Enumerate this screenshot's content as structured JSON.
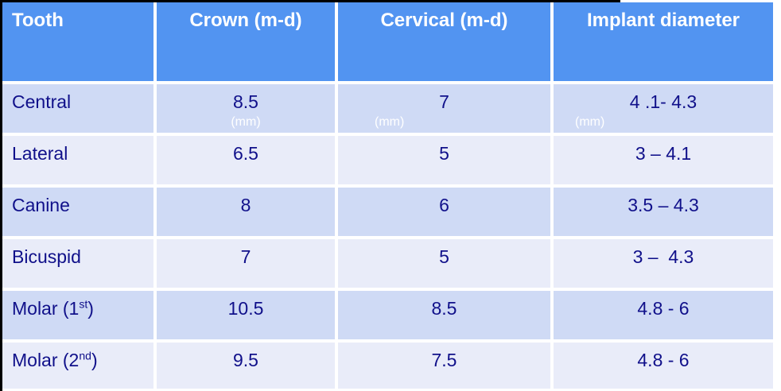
{
  "colors": {
    "header_bg": "#5294f1",
    "header_text": "#ffffff",
    "row_dark_bg": "#cfdaf5",
    "row_light_bg": "#e9ecf9",
    "value_text": "#10108a",
    "unit_text": "#ffffff",
    "crop_border": "#000000"
  },
  "table": {
    "columns": {
      "tooth": "Tooth",
      "crown": "Crown (m-d)",
      "cervical": "Cervical (m-d)",
      "implant": "Implant diameter"
    },
    "unit_label": "(mm)",
    "rows": [
      {
        "tooth_base": "Central",
        "tooth_sup": "",
        "tooth_suffix": "",
        "crown": "8.5",
        "cervical": "7",
        "implant": "4 .1- 4.3"
      },
      {
        "tooth_base": "Lateral",
        "tooth_sup": "",
        "tooth_suffix": "",
        "crown": "6.5",
        "cervical": "5",
        "implant": "3 – 4.1"
      },
      {
        "tooth_base": "Canine",
        "tooth_sup": "",
        "tooth_suffix": "",
        "crown": "8",
        "cervical": "6",
        "implant": "3.5 – 4.3"
      },
      {
        "tooth_base": "Bicuspid",
        "tooth_sup": "",
        "tooth_suffix": "",
        "crown": "7",
        "cervical": "5",
        "implant": "3 –  4.3"
      },
      {
        "tooth_base": "Molar (1",
        "tooth_sup": "st",
        "tooth_suffix": ")",
        "crown": "10.5",
        "cervical": "8.5",
        "implant": "4.8 - 6"
      },
      {
        "tooth_base": "Molar (2",
        "tooth_sup": "nd",
        "tooth_suffix": ")",
        "crown": "9.5",
        "cervical": "7.5",
        "implant": "4.8 - 6"
      }
    ]
  }
}
